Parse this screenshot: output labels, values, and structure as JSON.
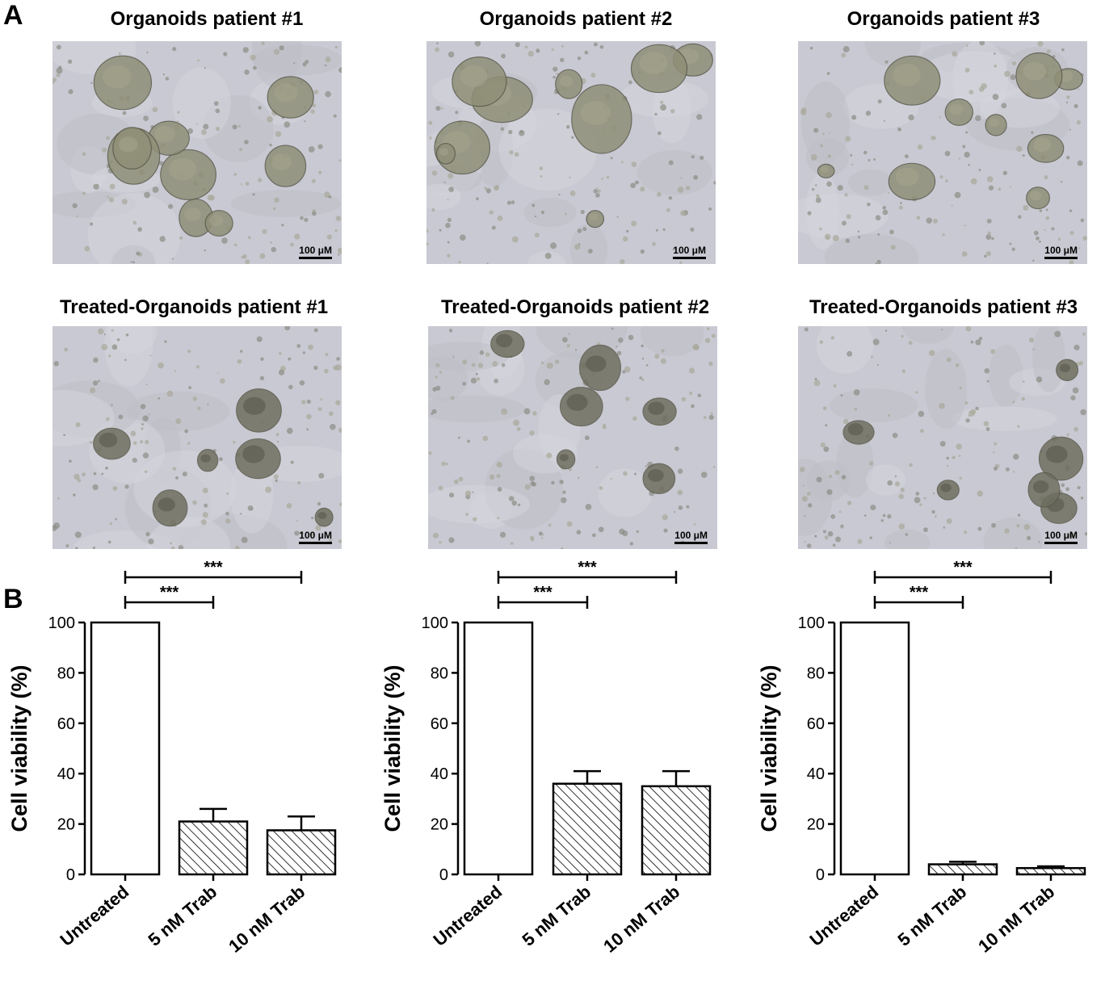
{
  "panels": {
    "a": "A",
    "b": "B"
  },
  "image_titles": [
    "Organoids patient #1",
    "Organoids patient #2",
    "Organoids patient #3",
    "Treated-Organoids patient #1",
    "Treated-Organoids patient #2",
    "Treated-Organoids patient #3"
  ],
  "scale_bar_label": "100 μM",
  "colors": {
    "image_background": "#c9c9d3",
    "bar_stroke": "#000000",
    "bar_fill": "#ffffff"
  },
  "chart_data": [
    {
      "type": "bar",
      "categories": [
        "Untreated",
        "5 nM Trab",
        "10 nM Trab"
      ],
      "values": [
        100,
        21,
        17.5
      ],
      "errors": [
        0,
        5,
        5.5
      ],
      "patterns": [
        "none",
        "hatch",
        "hatch"
      ],
      "ylabel": "Cell viability (%)",
      "ylim": [
        0,
        100
      ],
      "yticks": [
        0,
        20,
        40,
        60,
        80,
        100
      ],
      "significance": [
        {
          "from": 0,
          "to": 1,
          "label": "***"
        },
        {
          "from": 0,
          "to": 2,
          "label": "***"
        }
      ]
    },
    {
      "type": "bar",
      "categories": [
        "Untreated",
        "5 nM Trab",
        "10 nM Trab"
      ],
      "values": [
        100,
        36,
        35
      ],
      "errors": [
        0,
        5,
        6
      ],
      "patterns": [
        "none",
        "hatch",
        "hatch"
      ],
      "ylabel": "Cell viability (%)",
      "ylim": [
        0,
        100
      ],
      "yticks": [
        0,
        20,
        40,
        60,
        80,
        100
      ],
      "significance": [
        {
          "from": 0,
          "to": 1,
          "label": "***"
        },
        {
          "from": 0,
          "to": 2,
          "label": "***"
        }
      ]
    },
    {
      "type": "bar",
      "categories": [
        "Untreated",
        "5 nM Trab",
        "10 nM Trab"
      ],
      "values": [
        100,
        4,
        2.5
      ],
      "errors": [
        0,
        1,
        0.7
      ],
      "patterns": [
        "none",
        "hatch",
        "hatch"
      ],
      "ylabel": "Cell viability (%)",
      "ylim": [
        0,
        100
      ],
      "yticks": [
        0,
        20,
        40,
        60,
        80,
        100
      ],
      "significance": [
        {
          "from": 0,
          "to": 1,
          "label": "***"
        },
        {
          "from": 0,
          "to": 2,
          "label": "***"
        }
      ]
    }
  ]
}
